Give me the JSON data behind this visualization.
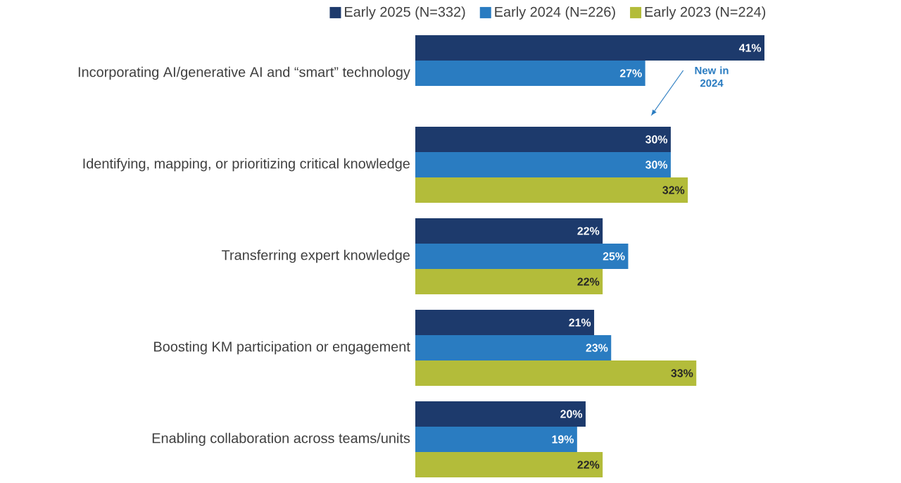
{
  "chart_data": {
    "type": "bar",
    "orientation": "horizontal",
    "legend": "top",
    "categories": [
      "Incorporating AI/generative AI and “smart” technology",
      "Identifying, mapping, or prioritizing critical knowledge",
      "Transferring expert knowledge",
      "Boosting KM participation or engagement",
      "Enabling collaboration across teams/units"
    ],
    "series": [
      {
        "name": "Early 2025 (N=332)",
        "color": "#1d3a6c",
        "values": [
          41,
          30,
          22,
          21,
          20
        ],
        "value_labels": [
          "41%",
          "30%",
          "22%",
          "21%",
          "20%"
        ]
      },
      {
        "name": "Early 2024 (N=226)",
        "color": "#2a7cc1",
        "values": [
          27,
          30,
          25,
          23,
          19
        ],
        "value_labels": [
          "27%",
          "30%",
          "25%",
          "23%",
          "19%"
        ]
      },
      {
        "name": "Early 2023 (N=224)",
        "color": "#b3bc3a",
        "values": [
          null,
          32,
          22,
          33,
          22
        ],
        "value_labels": [
          null,
          "32%",
          "22%",
          "33%",
          "22%"
        ]
      }
    ],
    "annotations": [
      "New in 2024"
    ]
  }
}
